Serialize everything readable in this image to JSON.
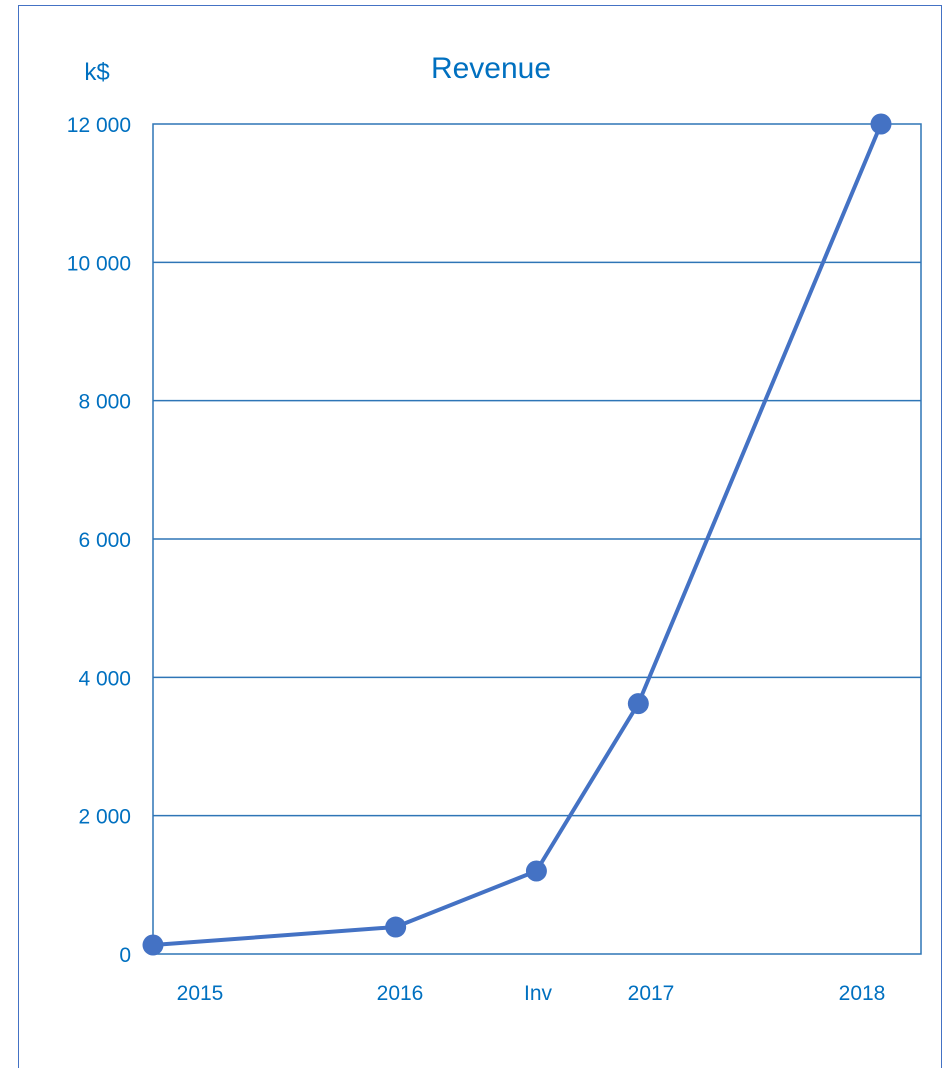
{
  "chart_data": {
    "type": "line",
    "title": "Revenue",
    "unit_label": "k$",
    "xlabel": "",
    "ylabel": "",
    "categories": [
      "2015",
      "2016",
      "Inv",
      "2017",
      "2018"
    ],
    "x": [
      2015,
      2016,
      2016.58,
      2017,
      2018
    ],
    "series": [
      {
        "values": [
          130,
          390,
          1200,
          3620,
          12000
        ]
      }
    ],
    "ylim": [
      0,
      12000
    ],
    "yticks": [
      0,
      2000,
      4000,
      6000,
      8000,
      10000,
      12000
    ],
    "ytick_labels": [
      "0",
      "2 000",
      "4 000",
      "6 000",
      "8 000",
      "10 000",
      "12 000"
    ],
    "grid": true,
    "legend": "none",
    "colors": {
      "series": "#4472C4",
      "axes": "#2E75B6",
      "text": "#0070C0"
    }
  }
}
